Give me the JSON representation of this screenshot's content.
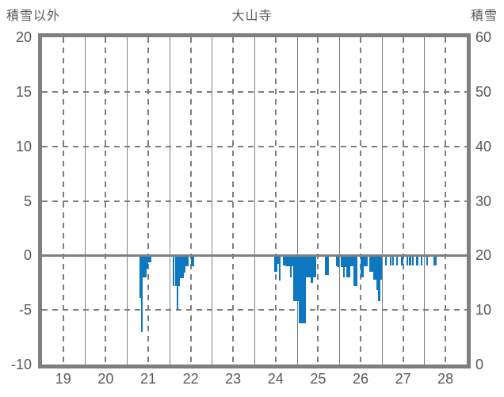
{
  "header": {
    "left_axis_title": "積雪以外",
    "chart_title": "大山寺",
    "right_axis_title": "積雪"
  },
  "chart_data": {
    "type": "bar",
    "title": "大山寺",
    "xlabel": "",
    "ylabel_left": "積雪以外",
    "ylabel_right": "積雪",
    "x_range_days": [
      19,
      29
    ],
    "x_tick_labels": [
      "19",
      "20",
      "21",
      "22",
      "23",
      "24",
      "25",
      "26",
      "27",
      "28"
    ],
    "left_y_range": [
      -10,
      20
    ],
    "left_y_tick_labels": [
      "20",
      "15",
      "10",
      "5",
      "0",
      "-5",
      "-10"
    ],
    "left_y_tick_values": [
      20,
      15,
      10,
      5,
      0,
      -5,
      -10
    ],
    "right_y_range": [
      0,
      60
    ],
    "right_y_tick_labels": [
      "60",
      "50",
      "40",
      "30",
      "20",
      "10",
      "0"
    ],
    "grid": {
      "solid_vertical_at_day_boundaries": true,
      "dashed_vertical_at_day_midpoints": true,
      "dashed_horizontal_at": [
        15,
        10,
        5,
        -5
      ],
      "solid_horizontal_at": [
        0
      ]
    },
    "legend_position": "none",
    "colors": {
      "bar": "#0d78c0",
      "grid": "#7f7f7f",
      "text": "#595959",
      "background": "#ffffff"
    },
    "bars_unit": "hourly values on left axis scale, x = fractional day",
    "bars": [
      [
        21.292,
        -3.9
      ],
      [
        21.333,
        -7.0
      ],
      [
        21.375,
        -2.0
      ],
      [
        21.417,
        -2.0
      ],
      [
        21.458,
        -1.2
      ],
      [
        21.5,
        -0.6
      ],
      [
        21.542,
        -0.6
      ],
      [
        22.083,
        -2.8
      ],
      [
        22.125,
        -2.8
      ],
      [
        22.167,
        -5.0
      ],
      [
        22.208,
        -2.8
      ],
      [
        22.25,
        -2.1
      ],
      [
        22.292,
        -2.1
      ],
      [
        22.333,
        -1.6
      ],
      [
        22.375,
        -1.0
      ],
      [
        22.417,
        -1.0
      ],
      [
        22.5,
        -1.0
      ],
      [
        22.542,
        -1.0
      ],
      [
        24.458,
        -1.5
      ],
      [
        24.5,
        -1.5
      ],
      [
        24.542,
        -0.8
      ],
      [
        24.583,
        -2.3
      ],
      [
        24.667,
        -0.9
      ],
      [
        24.708,
        -0.9
      ],
      [
        24.75,
        -1.0
      ],
      [
        24.792,
        -1.0
      ],
      [
        24.833,
        -2.0
      ],
      [
        24.875,
        -1.0
      ],
      [
        24.917,
        -4.2
      ],
      [
        24.958,
        -4.2
      ],
      [
        25.0,
        -4.2
      ],
      [
        25.042,
        -6.2
      ],
      [
        25.083,
        -6.2
      ],
      [
        25.125,
        -6.2
      ],
      [
        25.167,
        -6.2
      ],
      [
        25.208,
        -2.0
      ],
      [
        25.25,
        -2.0
      ],
      [
        25.292,
        -2.0
      ],
      [
        25.333,
        -2.5
      ],
      [
        25.375,
        -2.0
      ],
      [
        25.417,
        -2.0
      ],
      [
        25.667,
        -1.8
      ],
      [
        25.708,
        -1.8
      ],
      [
        25.917,
        -1.0
      ],
      [
        25.958,
        -1.1
      ],
      [
        26.042,
        -1.1
      ],
      [
        26.083,
        -2.0
      ],
      [
        26.125,
        -1.1
      ],
      [
        26.167,
        -2.0
      ],
      [
        26.208,
        -2.0
      ],
      [
        26.25,
        -1.0
      ],
      [
        26.292,
        -1.0
      ],
      [
        26.333,
        -2.8
      ],
      [
        26.375,
        -2.8
      ],
      [
        26.5,
        -2.0
      ],
      [
        26.542,
        -2.0
      ],
      [
        26.583,
        -1.0
      ],
      [
        26.625,
        -1.0
      ],
      [
        26.708,
        -1.5
      ],
      [
        26.75,
        -1.5
      ],
      [
        26.792,
        -2.2
      ],
      [
        26.833,
        -2.2
      ],
      [
        26.875,
        -3.2
      ],
      [
        26.917,
        -4.2
      ],
      [
        26.958,
        -2.2
      ],
      [
        27.083,
        -0.9
      ],
      [
        27.188,
        -0.9
      ],
      [
        27.25,
        -0.9
      ],
      [
        27.333,
        -0.9
      ],
      [
        27.458,
        -0.9
      ],
      [
        27.583,
        -0.9
      ],
      [
        27.646,
        -0.9
      ],
      [
        27.708,
        -0.9
      ],
      [
        27.813,
        -0.9
      ],
      [
        27.917,
        -0.9
      ],
      [
        28.042,
        -0.9
      ],
      [
        28.208,
        -0.9
      ],
      [
        28.25,
        -0.9
      ]
    ]
  }
}
